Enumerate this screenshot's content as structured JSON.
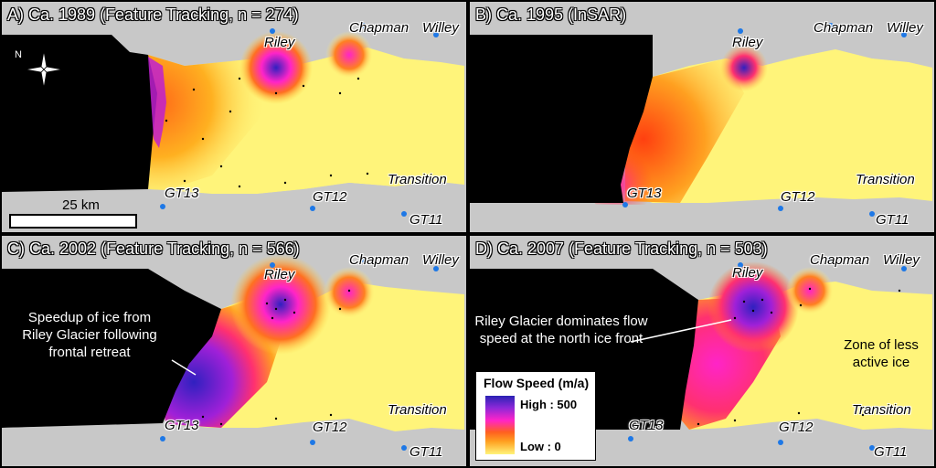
{
  "panels": [
    {
      "title": "A) Ca. 1989 (Feature Tracking, n = 274)"
    },
    {
      "title": "B) Ca. 1995 (InSAR)"
    },
    {
      "title": "C) Ca. 2002 (Feature Tracking, n = 566)"
    },
    {
      "title": "D) Ca. 2007 (Feature Tracking, n = 503)"
    }
  ],
  "places": {
    "riley": "Riley",
    "chapman": "Chapman",
    "willey": "Willey",
    "transition": "Transition",
    "gt13": "GT13",
    "gt12": "GT12",
    "gt11": "GT11"
  },
  "scale_bar": {
    "label": "25 km"
  },
  "north_arrow": {
    "label": "N",
    "icon": "north-arrow-icon"
  },
  "annotations": {
    "c_speedup": "Speedup of ice from Riley Glacier following frontal retreat",
    "d_riley": "Riley Glacier dominates flow speed at the north ice front",
    "d_zone": "Zone of less active ice"
  },
  "legend": {
    "title": "Flow Speed (m/a)",
    "high": "High : 500",
    "low": "Low : 0",
    "colors": [
      "#2a22b4",
      "#8a28d8",
      "#ff24c8",
      "#ff6020",
      "#ffa020",
      "#fff47a"
    ]
  },
  "colors": {
    "land": "#c8c8c8",
    "ocean": "#000000",
    "gps_station": "#1e78e6",
    "ice_low": "#fff47a"
  }
}
